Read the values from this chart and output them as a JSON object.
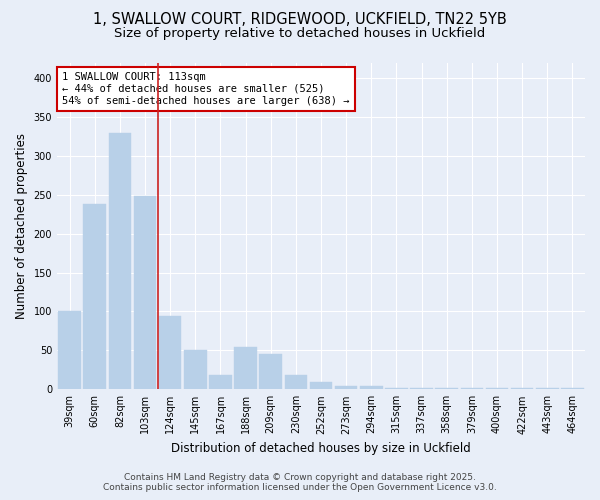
{
  "title_line1": "1, SWALLOW COURT, RIDGEWOOD, UCKFIELD, TN22 5YB",
  "title_line2": "Size of property relative to detached houses in Uckfield",
  "xlabel": "Distribution of detached houses by size in Uckfield",
  "ylabel": "Number of detached properties",
  "categories": [
    "39sqm",
    "60sqm",
    "82sqm",
    "103sqm",
    "124sqm",
    "145sqm",
    "167sqm",
    "188sqm",
    "209sqm",
    "230sqm",
    "252sqm",
    "273sqm",
    "294sqm",
    "315sqm",
    "337sqm",
    "358sqm",
    "379sqm",
    "400sqm",
    "422sqm",
    "443sqm",
    "464sqm"
  ],
  "values": [
    100,
    238,
    330,
    248,
    94,
    50,
    18,
    55,
    45,
    18,
    10,
    4,
    4,
    2,
    2,
    2,
    2,
    2,
    2,
    2,
    2
  ],
  "bar_color": "#b8d0e8",
  "vline_color": "#cc2222",
  "vline_index": 3,
  "ylim": [
    0,
    420
  ],
  "yticks": [
    0,
    50,
    100,
    150,
    200,
    250,
    300,
    350,
    400
  ],
  "annotation_title": "1 SWALLOW COURT: 113sqm",
  "annotation_line1": "← 44% of detached houses are smaller (525)",
  "annotation_line2": "54% of semi-detached houses are larger (638) →",
  "annotation_box_facecolor": "#ffffff",
  "annotation_box_edgecolor": "#cc0000",
  "footer_line1": "Contains HM Land Registry data © Crown copyright and database right 2025.",
  "footer_line2": "Contains public sector information licensed under the Open Government Licence v3.0.",
  "background_color": "#e8eef8",
  "grid_color": "#ffffff",
  "title_fontsize": 10.5,
  "subtitle_fontsize": 9.5,
  "tick_fontsize": 7,
  "ylabel_fontsize": 8.5,
  "xlabel_fontsize": 8.5,
  "footer_fontsize": 6.5,
  "annotation_fontsize": 7.5
}
